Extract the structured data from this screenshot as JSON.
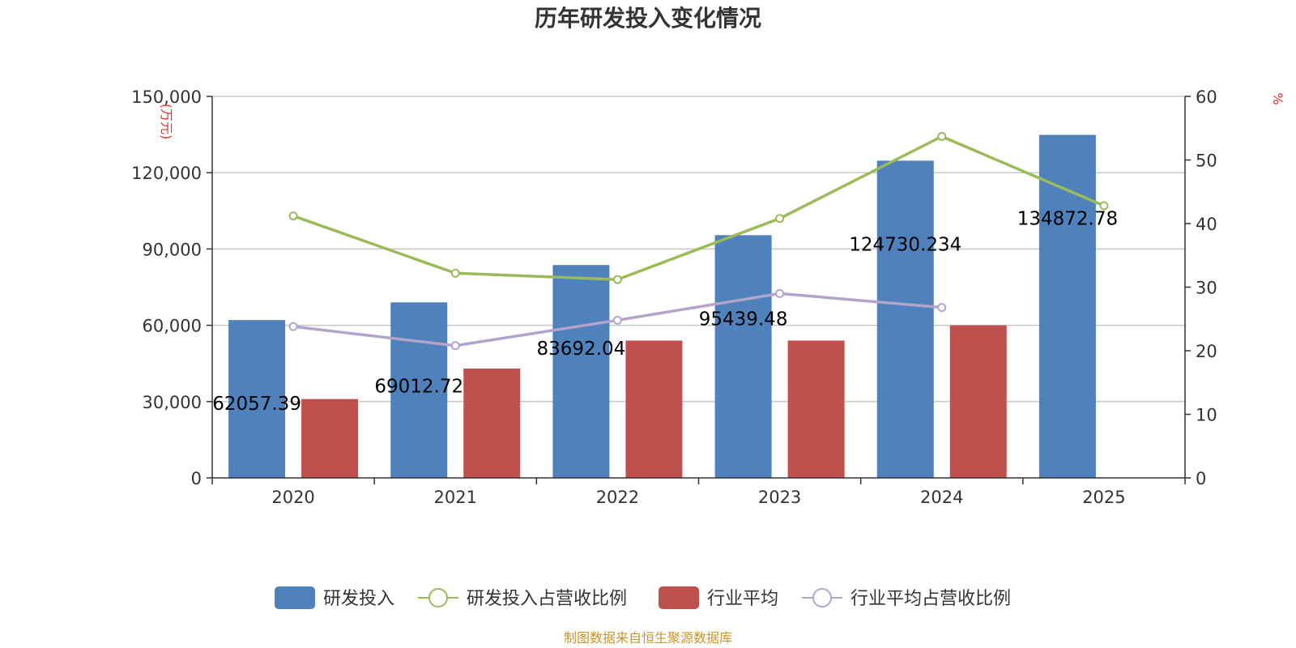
{
  "chart_data": {
    "type": "bar",
    "title": "历年研发投入变化情况",
    "categories": [
      "2020",
      "2021",
      "2022",
      "2023",
      "2024",
      "2025"
    ],
    "y_left": {
      "unit": "(万元)",
      "range": [
        0,
        150000
      ],
      "ticks": [
        0,
        30000,
        60000,
        90000,
        120000,
        150000
      ],
      "tick_labels": [
        "0",
        "30,000",
        "60,000",
        "90,000",
        "120,000",
        "150,000"
      ]
    },
    "y_right": {
      "unit": "%",
      "range": [
        0,
        60
      ],
      "ticks": [
        0,
        10,
        20,
        30,
        40,
        50,
        60
      ],
      "tick_labels": [
        "0",
        "10",
        "20",
        "30",
        "40",
        "50",
        "60"
      ]
    },
    "grid": true,
    "legend_position": "bottom",
    "series": [
      {
        "name": "研发投入",
        "kind": "bar",
        "axis": "left",
        "color": "#4f81bd",
        "values": [
          62057.39,
          69012.72,
          83692.04,
          95439.48,
          124730.234,
          134872.78
        ],
        "labels": [
          "62057.39",
          "69012.72",
          "83692.04",
          "95439.48",
          "124730.234",
          "134872.78"
        ]
      },
      {
        "name": "研发投入占营收比例",
        "kind": "line",
        "axis": "right",
        "color": "#9bbb59",
        "values": [
          41.2,
          32.2,
          31.2,
          40.8,
          53.7,
          42.8
        ]
      },
      {
        "name": "行业平均",
        "kind": "bar",
        "axis": "left",
        "color": "#c0504d",
        "values": [
          31000,
          43000,
          54000,
          54000,
          60000,
          null
        ]
      },
      {
        "name": "行业平均占营收比例",
        "kind": "line",
        "axis": "right",
        "color": "#b3a4cc",
        "values": [
          23.8,
          20.8,
          24.8,
          29.0,
          26.8,
          null
        ]
      }
    ],
    "source": "制图数据来自恒生聚源数据库"
  }
}
